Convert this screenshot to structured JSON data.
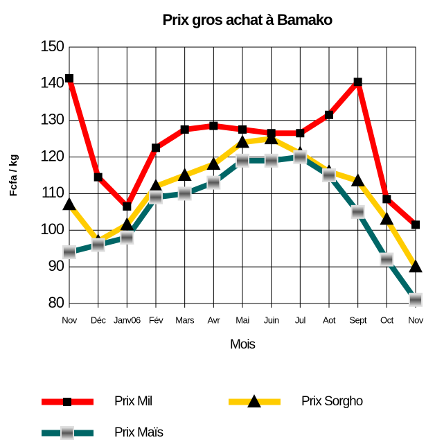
{
  "chart_data": {
    "type": "line",
    "title": "Prix  gros achat à Bamako",
    "y_label": "Fcfa / kg",
    "x_label": "Mois",
    "categories": [
      "Nov",
      "Déc",
      "Janv06",
      "Fév",
      "Mars",
      "Avr",
      "Mai",
      "Juin",
      "Jul",
      "Aot",
      "Sept",
      "Oct",
      "Nov"
    ],
    "series": [
      {
        "name": "Prix Mil",
        "color": "#ff0000",
        "marker": "square",
        "values": [
          141.5,
          114.5,
          106.5,
          122.5,
          127.5,
          128.5,
          127.5,
          126.5,
          126.5,
          131.5,
          140.5,
          108.5,
          101.5
        ]
      },
      {
        "name": "Prix Sorgho",
        "color": "#ffcc00",
        "marker": "triangle",
        "values": [
          107,
          97,
          101.5,
          112,
          115,
          118,
          124,
          125,
          121,
          116,
          113.5,
          103,
          90
        ]
      },
      {
        "name": "Prix Maïs",
        "color": "#006666",
        "marker": "box",
        "values": [
          94,
          96,
          98,
          109,
          110,
          113,
          119,
          119,
          120,
          115,
          105,
          92,
          81
        ]
      }
    ],
    "ylim": [
      80,
      150
    ],
    "yticks": [
      80,
      90,
      100,
      110,
      120,
      130,
      140,
      150
    ],
    "grid": true,
    "legend": "bottom"
  }
}
